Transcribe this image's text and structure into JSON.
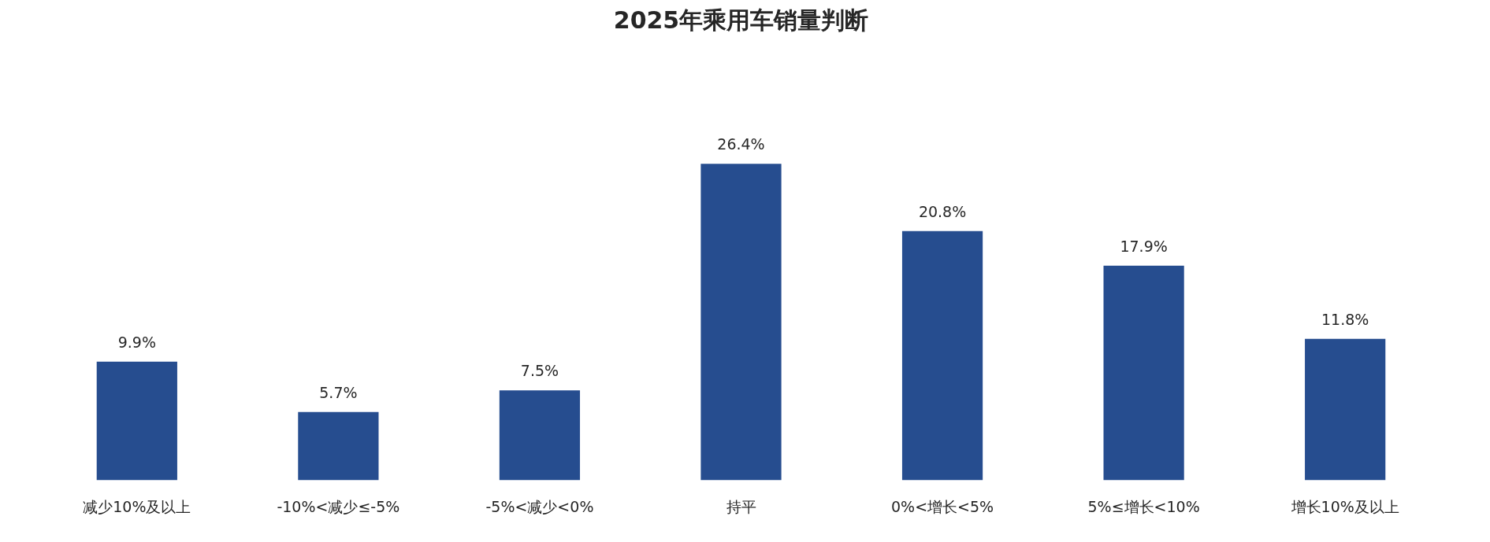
{
  "chart_data": {
    "type": "bar",
    "title": "2025年乘用车销量判断",
    "categories": [
      "减少10%及以上",
      "-10%<减少≤-5%",
      "-5%<减少<0%",
      "持平",
      "0%<增长<5%",
      "5%≤增长<10%",
      "增长10%及以上"
    ],
    "values": [
      9.9,
      5.7,
      7.5,
      26.4,
      20.8,
      17.9,
      11.8
    ],
    "value_labels": [
      "9.9%",
      "5.7%",
      "7.5%",
      "26.4%",
      "20.8%",
      "17.9%",
      "11.8%"
    ],
    "color": "#264d8f",
    "grid": false
  }
}
